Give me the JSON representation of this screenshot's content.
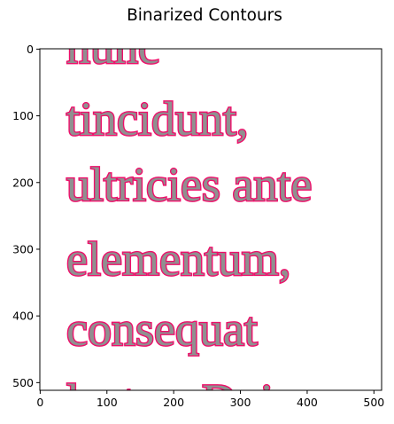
{
  "figure": {
    "title": "Binarized Contours"
  },
  "image_panel": {
    "lines": [
      "nunc",
      "tincidunt,",
      "ultricies ante",
      "elementum,",
      "consequat",
      "lectus. Duis"
    ],
    "x_ticks": [
      "0",
      "100",
      "200",
      "300",
      "400",
      "500"
    ],
    "y_ticks": [
      "0",
      "100",
      "200",
      "300",
      "400",
      "500"
    ],
    "xlim": [
      0,
      512
    ],
    "ylim": [
      512,
      0
    ],
    "contour_color": "#ee0f6a",
    "text_fill_color": "#909090"
  }
}
